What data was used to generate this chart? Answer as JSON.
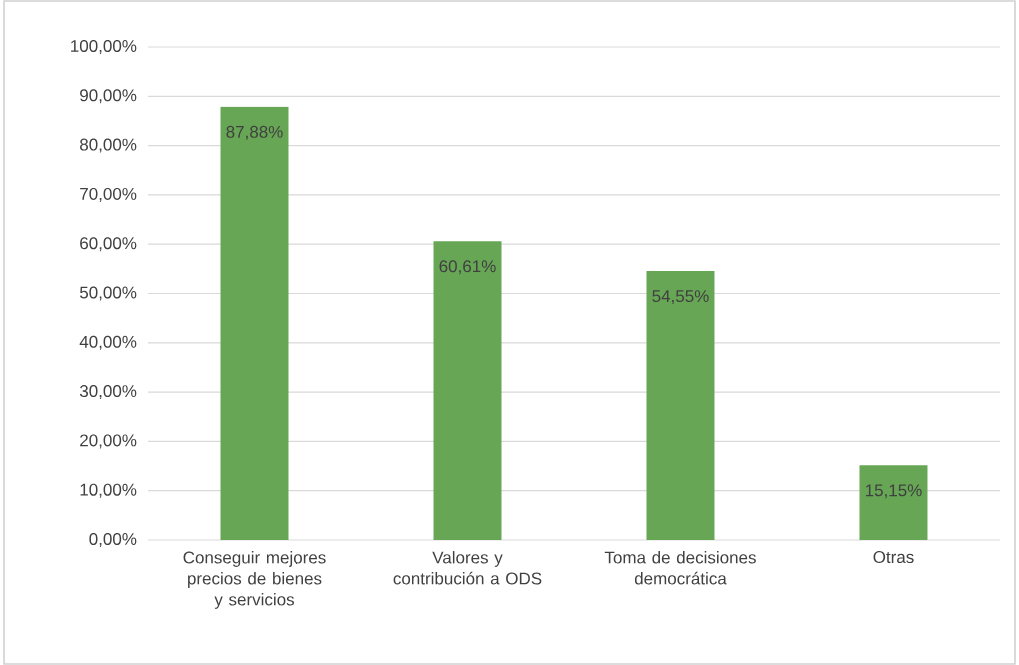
{
  "chart_data": {
    "type": "bar",
    "categories": [
      "Conseguir mejores precios de bienes y servicios",
      "Valores y contribución a ODS",
      "Toma de decisiones democrática",
      "Otras"
    ],
    "values": [
      87.88,
      60.61,
      54.55,
      15.15
    ],
    "value_labels": [
      "87,88%",
      "60,61%",
      "54,55%",
      "15,15%"
    ],
    "color": "#67a655",
    "ylim": [
      0,
      100
    ],
    "yticks": [
      {
        "value": 0,
        "label": "0,00%"
      },
      {
        "value": 10,
        "label": "10,00%"
      },
      {
        "value": 20,
        "label": "20,00%"
      },
      {
        "value": 30,
        "label": "30,00%"
      },
      {
        "value": 40,
        "label": "40,00%"
      },
      {
        "value": 50,
        "label": "50,00%"
      },
      {
        "value": 60,
        "label": "60,00%"
      },
      {
        "value": 70,
        "label": "70,00%"
      },
      {
        "value": 80,
        "label": "80,00%"
      },
      {
        "value": 90,
        "label": "90,00%"
      },
      {
        "value": 100,
        "label": "100,00%"
      }
    ],
    "grid": "y"
  }
}
